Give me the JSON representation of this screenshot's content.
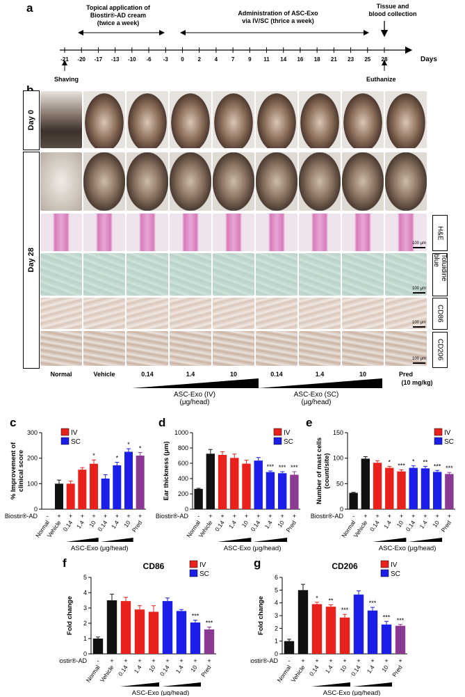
{
  "panel_labels": {
    "a": "a",
    "b": "b",
    "c": "c",
    "d": "d",
    "e": "e",
    "f": "f",
    "g": "g"
  },
  "timeline": {
    "days": [
      "-21",
      "-20",
      "-17",
      "-13",
      "-10",
      "-6",
      "-3",
      "0",
      "2",
      "4",
      "7",
      "9",
      "11",
      "14",
      "16",
      "18",
      "21",
      "23",
      "25",
      "28"
    ],
    "days_label": "Days",
    "topical_label": "Topical application of Biostir®-AD cream (twice a week)",
    "topical_line1": "Topical application of",
    "topical_line2": "Biostir®-AD cream",
    "topical_line3": "(twice a week)",
    "admin_line1": "Administration of ASC-Exo",
    "admin_line2": "via IV/SC (thrice a week)",
    "tissue_line1": "Tissue and",
    "tissue_line2": "blood collection",
    "shaving": "Shaving",
    "euthanize": "Euthanize"
  },
  "panel_b": {
    "day0": "Day 0",
    "day28": "Day 28",
    "stains": [
      "H&E",
      "Toluidine blue",
      "CD86",
      "CD206"
    ],
    "scale_bar": "100 μm",
    "groups": [
      "Normal",
      "Vehicle",
      "0.14",
      "1.4",
      "10",
      "0.14",
      "1.4",
      "10",
      "Pred"
    ],
    "pred_dose": "(10 mg/kg)",
    "iv_label_1": "ASC-Exo (IV)",
    "iv_label_2": "(μg/head)",
    "sc_label_1": "ASC-Exo (SC)",
    "sc_label_2": "(μg/head)"
  },
  "legend": {
    "iv": "IV",
    "sc": "SC"
  },
  "colors": {
    "black": "#111111",
    "iv": "#e8211d",
    "sc": "#1a1ee6",
    "pred": "#8b3a91"
  },
  "common": {
    "biostir": "Biostir®-AD",
    "x_labels": [
      "Normal",
      "Vehicle",
      "0.14",
      "1.4",
      "10",
      "0.14",
      "1.4",
      "10",
      "Pred"
    ],
    "plus_minus": [
      "-",
      "+",
      "+",
      "+",
      "+",
      "+",
      "+",
      "+",
      "+"
    ],
    "asc_label": "ASC-Exo (μg/head)"
  },
  "chart_data": [
    {
      "id": "c",
      "type": "bar",
      "ylabel": "% Improvement of clinical score",
      "ylim": [
        0,
        300
      ],
      "yticks": [
        0,
        100,
        200,
        300
      ],
      "values": [
        null,
        100,
        100,
        155,
        178,
        120,
        172,
        225,
        210
      ],
      "errors": [
        0,
        14,
        10,
        8,
        15,
        15,
        12,
        12,
        12
      ],
      "sig": [
        "",
        "",
        "",
        "",
        "*",
        "",
        "*",
        "*",
        "*"
      ],
      "legend": "top-left"
    },
    {
      "id": "d",
      "type": "bar",
      "ylabel": "Ear thickness (μm)",
      "ylim": [
        0,
        1000
      ],
      "yticks": [
        0,
        200,
        400,
        600,
        800,
        1000
      ],
      "values": [
        265,
        725,
        710,
        670,
        595,
        635,
        485,
        470,
        450
      ],
      "errors": [
        8,
        55,
        40,
        50,
        45,
        40,
        15,
        20,
        40
      ],
      "sig": [
        "",
        "",
        "",
        "",
        "",
        "",
        "***",
        "***",
        "***"
      ],
      "legend": "top-right"
    },
    {
      "id": "e",
      "type": "bar",
      "ylabel": "Number of mast cells (count/site)",
      "ylim": [
        0,
        150
      ],
      "yticks": [
        0,
        50,
        100,
        150
      ],
      "values": [
        32,
        99,
        91,
        81,
        74,
        81,
        80,
        73,
        69
      ],
      "errors": [
        1,
        4,
        4,
        3,
        3,
        4,
        4,
        3,
        3
      ],
      "sig": [
        "",
        "",
        "",
        "*",
        "***",
        "*",
        "**",
        "***",
        "***"
      ],
      "legend": "top-right"
    },
    {
      "id": "f",
      "type": "bar",
      "title": "CD86",
      "ylabel": "Fold change",
      "ylim": [
        0,
        5
      ],
      "yticks": [
        0,
        1,
        2,
        3,
        4,
        5
      ],
      "values": [
        1.0,
        3.5,
        3.45,
        2.9,
        2.75,
        3.45,
        2.8,
        2.05,
        1.6
      ],
      "errors": [
        0.1,
        0.4,
        0.25,
        0.25,
        0.4,
        0.2,
        0.1,
        0.15,
        0.15
      ],
      "sig": [
        "",
        "",
        "",
        "",
        "",
        "",
        "",
        "***",
        "***"
      ],
      "legend": "top-right"
    },
    {
      "id": "g",
      "type": "bar",
      "title": "CD206",
      "ylabel": "Fold change",
      "ylim": [
        0,
        6
      ],
      "yticks": [
        0,
        1,
        2,
        3,
        4,
        5,
        6
      ],
      "values": [
        1.0,
        5.0,
        3.9,
        3.7,
        2.85,
        4.65,
        3.4,
        2.3,
        2.2
      ],
      "errors": [
        0.15,
        0.45,
        0.15,
        0.15,
        0.25,
        0.3,
        0.25,
        0.25,
        0.1
      ],
      "sig": [
        "",
        "",
        "*",
        "**",
        "***",
        "",
        "***",
        "***",
        "***"
      ],
      "legend": "top-right"
    }
  ]
}
